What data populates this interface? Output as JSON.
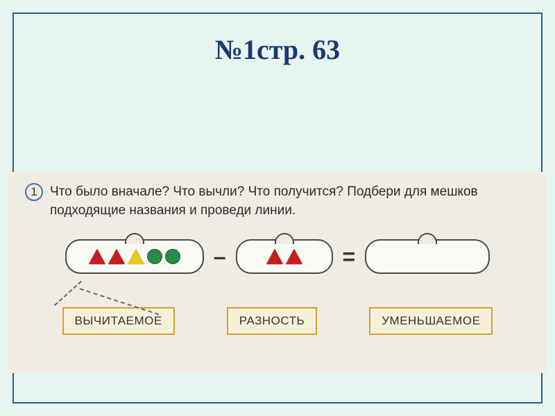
{
  "heading": "№1стр. 63",
  "exercise": {
    "number": "1",
    "question": "Что было вначале? Что вычли? Что получится? Подбери для мешков подходящие названия и проведи линии."
  },
  "bags": {
    "bag1": {
      "shapes": [
        {
          "type": "triangle",
          "color": "#c41e1e"
        },
        {
          "type": "triangle",
          "color": "#c41e1e"
        },
        {
          "type": "triangle",
          "color": "#e8c820"
        },
        {
          "type": "circle",
          "color": "#2a8a4a"
        },
        {
          "type": "circle",
          "color": "#2a8a4a"
        }
      ]
    },
    "bag2": {
      "shapes": [
        {
          "type": "triangle",
          "color": "#c41e1e"
        },
        {
          "type": "triangle",
          "color": "#c41e1e"
        }
      ]
    },
    "bag3": {
      "shapes": []
    }
  },
  "operators": {
    "minus": "–",
    "equals": "="
  },
  "labels": {
    "subtrahend": "ВЫЧИТАЕМОЕ",
    "difference": "РАЗНОСТЬ",
    "minuend": "УМЕНЬШАЕМОЕ"
  },
  "colors": {
    "slide_bg": "#e8f4f0",
    "frame_border": "#2a5a8a",
    "heading_color": "#1a3a6e",
    "workbook_bg": "#f0ece4",
    "bag_bg": "#fafaf5",
    "bag_border": "#4a4a4a",
    "label_bg": "#f5f0d8",
    "label_border": "#d4a030",
    "triangle_red": "#c41e1e",
    "triangle_yellow": "#e8c820",
    "circle_green": "#2a8a4a"
  }
}
